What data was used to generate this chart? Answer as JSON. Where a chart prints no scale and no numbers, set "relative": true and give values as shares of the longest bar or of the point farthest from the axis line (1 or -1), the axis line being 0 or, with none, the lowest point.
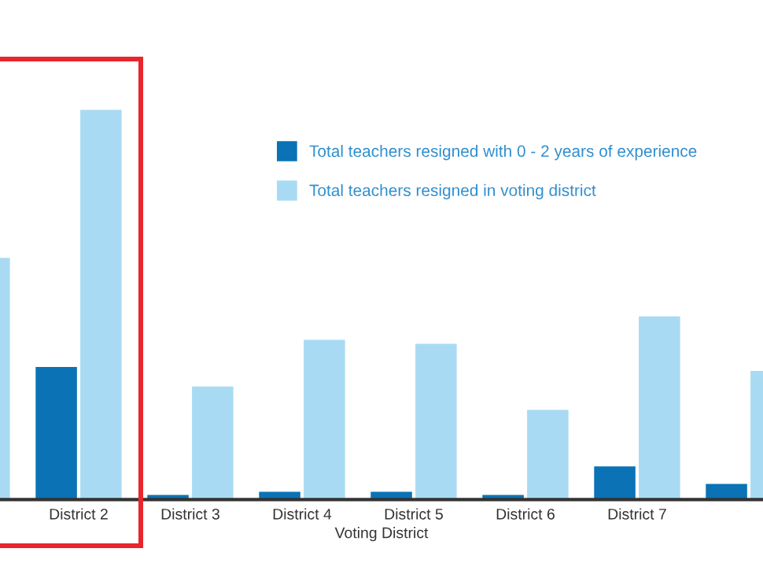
{
  "chart_data": {
    "type": "bar",
    "relative": true,
    "xlabel": "Voting District",
    "categories": [
      null,
      "District 2",
      "District 3",
      "District 4",
      "District 5",
      "District 6",
      "District 7",
      null
    ],
    "series": [
      {
        "name": "Total teachers resigned with 0 - 2 years of experience",
        "color": "#0b72b5",
        "values": [
          null,
          0.34,
          0.012,
          0.02,
          0.02,
          0.012,
          0.085,
          0.04
        ]
      },
      {
        "name": "Total teachers resigned in voting district",
        "color": "#a8dbf3",
        "values": [
          0.62,
          1,
          0.29,
          0.41,
          0.4,
          0.23,
          0.47,
          0.33
        ]
      }
    ],
    "legend": "top right",
    "grid": false
  }
}
